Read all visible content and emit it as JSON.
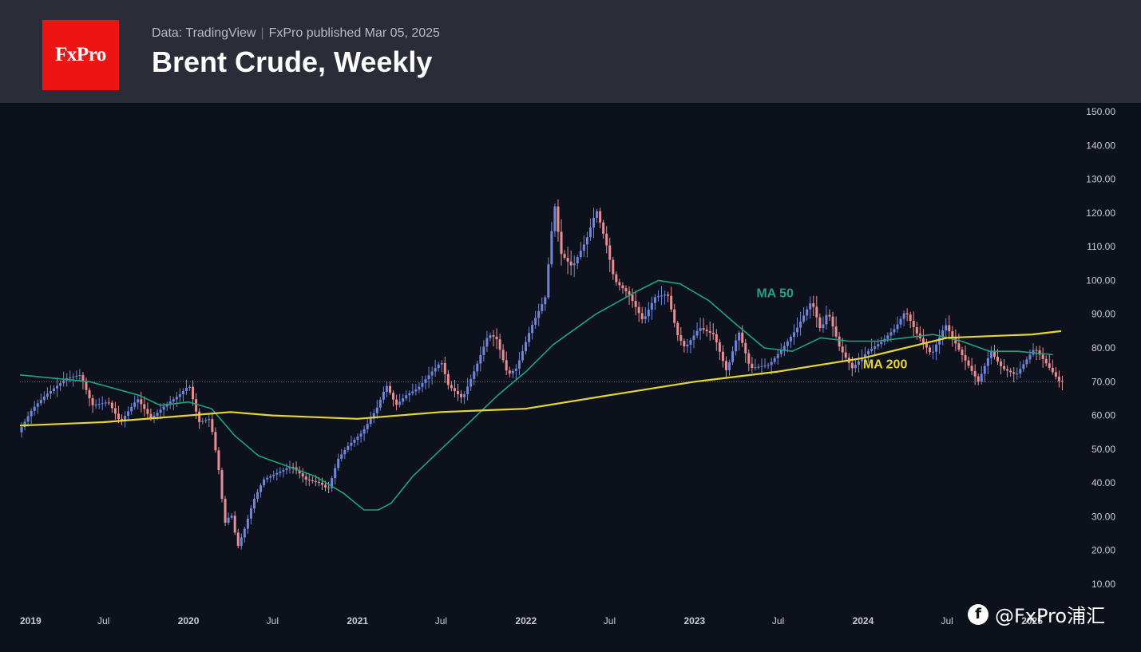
{
  "header": {
    "logo_text": "FxPro",
    "source": "Data: TradingView",
    "published": "FxPro published Mar 05, 2025",
    "title": "Brent Crude, Weekly"
  },
  "watermark": {
    "icon": "facebook-icon",
    "text": "@FxPro浦汇"
  },
  "colors": {
    "background": "#0d111c",
    "header": "#2a2d37",
    "logo": "#ef1414",
    "up": "#6f86d9",
    "down": "#e98f92",
    "ma50": "#1fa37d",
    "ma200": "#e5d630",
    "axis_text": "#c9ccd4"
  },
  "chart_data": {
    "type": "candlestick",
    "title": "Brent Crude, Weekly",
    "timeframe": "Weekly",
    "x_range": [
      "2019-01-01",
      "2025-03-05"
    ],
    "ylim": [
      10,
      150
    ],
    "y_ticks": [
      "150.00",
      "140.00",
      "130.00",
      "120.00",
      "110.00",
      "100.00",
      "90.00",
      "80.00",
      "70.00",
      "60.00",
      "50.00",
      "40.00",
      "30.00",
      "20.00",
      "10.00"
    ],
    "x_ticks": [
      {
        "label": "2019",
        "date": "2019-01-01"
      },
      {
        "label": "Jul",
        "date": "2019-07-01"
      },
      {
        "label": "2020",
        "date": "2020-01-01"
      },
      {
        "label": "Jul",
        "date": "2020-07-01"
      },
      {
        "label": "2021",
        "date": "2021-01-01"
      },
      {
        "label": "Jul",
        "date": "2021-07-01"
      },
      {
        "label": "2022",
        "date": "2022-01-01"
      },
      {
        "label": "Jul",
        "date": "2022-07-01"
      },
      {
        "label": "2023",
        "date": "2023-01-01"
      },
      {
        "label": "Jul",
        "date": "2023-07-01"
      },
      {
        "label": "2024",
        "date": "2024-01-01"
      },
      {
        "label": "Jul",
        "date": "2024-07-01"
      },
      {
        "label": "2025",
        "date": "2025-01-01"
      }
    ],
    "reference_line": 70,
    "series": [
      {
        "name": "Brent Crude",
        "kind": "close",
        "points": [
          [
            "2019-01-01",
            55
          ],
          [
            "2019-02-01",
            62
          ],
          [
            "2019-03-01",
            66
          ],
          [
            "2019-04-15",
            71
          ],
          [
            "2019-05-15",
            72
          ],
          [
            "2019-06-10",
            63
          ],
          [
            "2019-07-15",
            64
          ],
          [
            "2019-08-10",
            58
          ],
          [
            "2019-09-16",
            65
          ],
          [
            "2019-10-15",
            59
          ],
          [
            "2019-11-15",
            63
          ],
          [
            "2019-12-15",
            66
          ],
          [
            "2020-01-06",
            69
          ],
          [
            "2020-01-27",
            58
          ],
          [
            "2020-02-20",
            59
          ],
          [
            "2020-03-09",
            45
          ],
          [
            "2020-03-23",
            28
          ],
          [
            "2020-04-06",
            31
          ],
          [
            "2020-04-20",
            21
          ],
          [
            "2020-05-04",
            26
          ],
          [
            "2020-05-25",
            35
          ],
          [
            "2020-06-15",
            41
          ],
          [
            "2020-07-15",
            43
          ],
          [
            "2020-08-15",
            45
          ],
          [
            "2020-09-15",
            41
          ],
          [
            "2020-10-15",
            40
          ],
          [
            "2020-11-02",
            38
          ],
          [
            "2020-11-23",
            47
          ],
          [
            "2020-12-15",
            51
          ],
          [
            "2021-01-15",
            55
          ],
          [
            "2021-02-15",
            62
          ],
          [
            "2021-03-08",
            69
          ],
          [
            "2021-03-29",
            63
          ],
          [
            "2021-04-20",
            66
          ],
          [
            "2021-05-15",
            68
          ],
          [
            "2021-06-15",
            73
          ],
          [
            "2021-07-05",
            76
          ],
          [
            "2021-07-20",
            69
          ],
          [
            "2021-08-20",
            65
          ],
          [
            "2021-09-20",
            75
          ],
          [
            "2021-10-15",
            84
          ],
          [
            "2021-11-01",
            83
          ],
          [
            "2021-11-26",
            72
          ],
          [
            "2021-12-15",
            74
          ],
          [
            "2022-01-15",
            86
          ],
          [
            "2022-02-15",
            95
          ],
          [
            "2022-03-07",
            123
          ],
          [
            "2022-03-21",
            108
          ],
          [
            "2022-04-15",
            104
          ],
          [
            "2022-05-15",
            112
          ],
          [
            "2022-06-06",
            121
          ],
          [
            "2022-06-27",
            111
          ],
          [
            "2022-07-15",
            100
          ],
          [
            "2022-08-15",
            96
          ],
          [
            "2022-09-15",
            88
          ],
          [
            "2022-10-10",
            95
          ],
          [
            "2022-11-07",
            96
          ],
          [
            "2022-11-28",
            84
          ],
          [
            "2022-12-15",
            80
          ],
          [
            "2023-01-15",
            86
          ],
          [
            "2023-02-15",
            84
          ],
          [
            "2023-03-15",
            73
          ],
          [
            "2023-04-10",
            85
          ],
          [
            "2023-05-05",
            74
          ],
          [
            "2023-06-15",
            75
          ],
          [
            "2023-07-15",
            80
          ],
          [
            "2023-08-15",
            86
          ],
          [
            "2023-09-15",
            94
          ],
          [
            "2023-10-05",
            85
          ],
          [
            "2023-10-20",
            91
          ],
          [
            "2023-11-15",
            80
          ],
          [
            "2023-12-12",
            74
          ],
          [
            "2024-01-15",
            79
          ],
          [
            "2024-02-15",
            82
          ],
          [
            "2024-03-15",
            86
          ],
          [
            "2024-04-05",
            91
          ],
          [
            "2024-05-01",
            84
          ],
          [
            "2024-06-01",
            78
          ],
          [
            "2024-07-01",
            87
          ],
          [
            "2024-08-01",
            79
          ],
          [
            "2024-09-10",
            70
          ],
          [
            "2024-10-07",
            79
          ],
          [
            "2024-11-01",
            74
          ],
          [
            "2024-12-01",
            72
          ],
          [
            "2025-01-10",
            80
          ],
          [
            "2025-02-01",
            76
          ],
          [
            "2025-03-05",
            70
          ]
        ]
      },
      {
        "name": "MA 50",
        "points": [
          [
            "2019-01-01",
            72
          ],
          [
            "2019-06-01",
            70
          ],
          [
            "2019-09-15",
            66
          ],
          [
            "2019-11-01",
            63
          ],
          [
            "2020-01-01",
            64
          ],
          [
            "2020-02-20",
            62
          ],
          [
            "2020-04-10",
            54
          ],
          [
            "2020-06-01",
            48
          ],
          [
            "2020-08-01",
            45
          ],
          [
            "2020-10-01",
            42
          ],
          [
            "2020-12-01",
            37
          ],
          [
            "2021-01-15",
            32
          ],
          [
            "2021-02-15",
            32
          ],
          [
            "2021-03-15",
            34
          ],
          [
            "2021-05-01",
            42
          ],
          [
            "2021-07-01",
            50
          ],
          [
            "2021-09-01",
            58
          ],
          [
            "2021-11-01",
            66
          ],
          [
            "2022-01-01",
            73
          ],
          [
            "2022-03-01",
            81
          ],
          [
            "2022-06-01",
            90
          ],
          [
            "2022-09-01",
            97
          ],
          [
            "2022-10-15",
            100
          ],
          [
            "2022-12-01",
            99
          ],
          [
            "2023-02-01",
            94
          ],
          [
            "2023-04-01",
            87
          ],
          [
            "2023-06-01",
            80
          ],
          [
            "2023-08-01",
            79
          ],
          [
            "2023-10-01",
            83
          ],
          [
            "2023-12-01",
            82
          ],
          [
            "2024-02-01",
            82
          ],
          [
            "2024-04-01",
            83
          ],
          [
            "2024-06-01",
            84
          ],
          [
            "2024-08-01",
            82
          ],
          [
            "2024-10-01",
            79
          ],
          [
            "2024-12-01",
            79
          ],
          [
            "2025-02-15",
            78
          ]
        ]
      },
      {
        "name": "MA 200",
        "points": [
          [
            "2019-01-01",
            57
          ],
          [
            "2019-07-01",
            58
          ],
          [
            "2020-01-01",
            60
          ],
          [
            "2020-04-01",
            61
          ],
          [
            "2020-07-01",
            60
          ],
          [
            "2021-01-01",
            59
          ],
          [
            "2021-07-01",
            61
          ],
          [
            "2022-01-01",
            62
          ],
          [
            "2022-07-01",
            66
          ],
          [
            "2023-01-01",
            70
          ],
          [
            "2023-07-01",
            73
          ],
          [
            "2024-01-01",
            77
          ],
          [
            "2024-04-01",
            80
          ],
          [
            "2024-07-01",
            83
          ],
          [
            "2025-01-01",
            84
          ],
          [
            "2025-03-05",
            85
          ]
        ]
      }
    ],
    "annotations": [
      {
        "text": "MA 50",
        "date": "2023-05-15",
        "value": 95,
        "series": "MA 50"
      },
      {
        "text": "MA 200",
        "date": "2024-01-01",
        "value": 74,
        "series": "MA 200"
      }
    ]
  }
}
